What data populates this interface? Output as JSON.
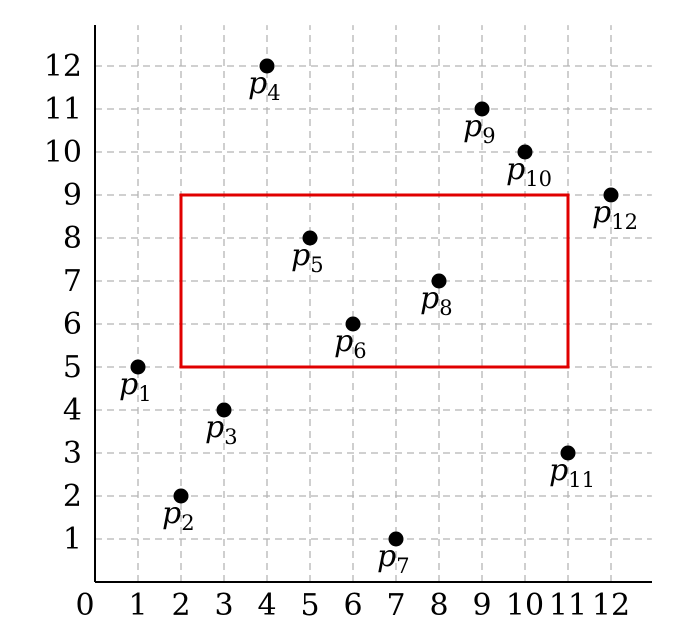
{
  "chart_data": {
    "type": "scatter",
    "xlim": [
      0,
      12
    ],
    "ylim": [
      0,
      12
    ],
    "x_ticks": [
      "0",
      "1",
      "2",
      "3",
      "4",
      "5",
      "6",
      "7",
      "8",
      "9",
      "10",
      "11",
      "12"
    ],
    "y_ticks": [
      "1",
      "2",
      "3",
      "4",
      "5",
      "6",
      "7",
      "8",
      "9",
      "10",
      "11",
      "12"
    ],
    "grid": true,
    "points": [
      {
        "label": "p",
        "sub": "1",
        "x": 1,
        "y": 5
      },
      {
        "label": "p",
        "sub": "2",
        "x": 2,
        "y": 2
      },
      {
        "label": "p",
        "sub": "3",
        "x": 3,
        "y": 4
      },
      {
        "label": "p",
        "sub": "4",
        "x": 4,
        "y": 12
      },
      {
        "label": "p",
        "sub": "5",
        "x": 5,
        "y": 8
      },
      {
        "label": "p",
        "sub": "6",
        "x": 6,
        "y": 6
      },
      {
        "label": "p",
        "sub": "7",
        "x": 7,
        "y": 1
      },
      {
        "label": "p",
        "sub": "8",
        "x": 8,
        "y": 7
      },
      {
        "label": "p",
        "sub": "9",
        "x": 9,
        "y": 11
      },
      {
        "label": "p",
        "sub": "10",
        "x": 10,
        "y": 10
      },
      {
        "label": "p",
        "sub": "11",
        "x": 11,
        "y": 3
      },
      {
        "label": "p",
        "sub": "12",
        "x": 12,
        "y": 9
      }
    ],
    "query_rectangle": {
      "x_min": 2,
      "x_max": 11,
      "y_min": 5,
      "y_max": 9,
      "color": "#e00000"
    },
    "point_color": "#000000",
    "grid_color": "#b5b5b5"
  }
}
